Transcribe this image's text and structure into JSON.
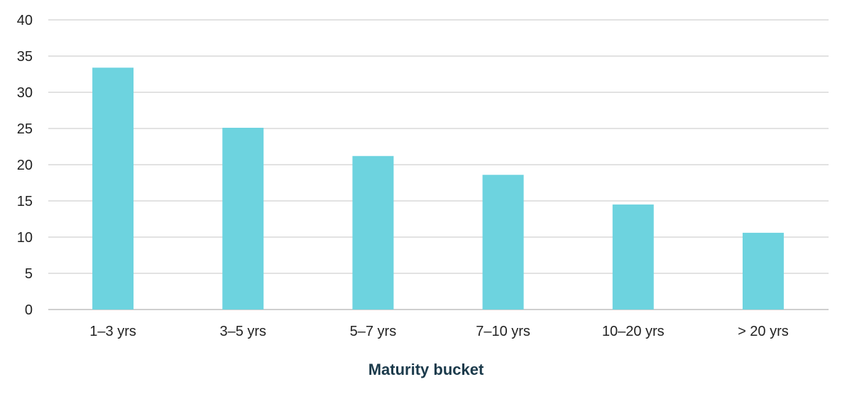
{
  "chart_data": {
    "type": "bar",
    "categories": [
      "1–3 yrs",
      "3–5 yrs",
      "5–7 yrs",
      "7–10 yrs",
      "10–20 yrs",
      "> 20 yrs"
    ],
    "values": [
      33.4,
      25.1,
      21.2,
      18.6,
      14.5,
      10.6
    ],
    "xlabel": "Maturity bucket",
    "ylabel": "",
    "ylim": [
      0,
      40
    ],
    "yticks": [
      "0",
      "5",
      "10",
      "15",
      "20",
      "25",
      "30",
      "35",
      "40"
    ],
    "grid": true,
    "legend": "none",
    "colors": {
      "bar": "#6dd3df",
      "grid": "#d9d9d9",
      "axis_title": "#1b3a4b"
    }
  }
}
